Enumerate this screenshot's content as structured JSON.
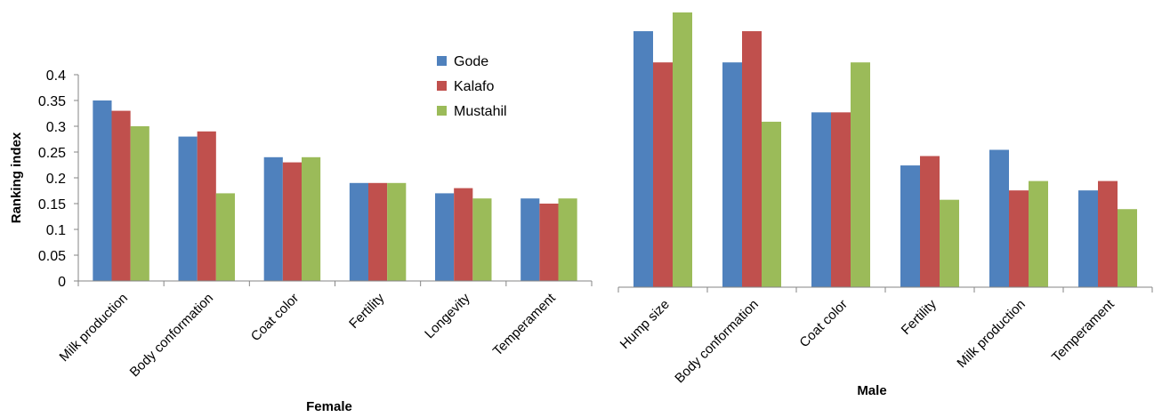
{
  "colors": {
    "Gode": "#4F81BD",
    "Kalafo": "#C0504D",
    "Mustahil": "#9BBB59"
  },
  "legend": {
    "items": [
      "Gode",
      "Kalafo",
      "Mustahil"
    ],
    "placement": "top-right of left chart"
  },
  "chart_data": [
    {
      "type": "bar",
      "xlabel": "Female",
      "ylabel": "Ranking index",
      "ylim": [
        0,
        0.4
      ],
      "yticks": [
        "0",
        "0.05",
        "0.1",
        "0.15",
        "0.2",
        "0.25",
        "0.3",
        "0.35",
        "0.4"
      ],
      "grid": false,
      "categories": [
        "Milk production",
        "Body conformation",
        "Coat color",
        "Fertility",
        "Longevity",
        "Temperament"
      ],
      "series": [
        {
          "name": "Gode",
          "values": [
            0.35,
            0.28,
            0.24,
            0.19,
            0.17,
            0.16
          ]
        },
        {
          "name": "Kalafo",
          "values": [
            0.33,
            0.29,
            0.23,
            0.19,
            0.18,
            0.15
          ]
        },
        {
          "name": "Mustahil",
          "values": [
            0.3,
            0.17,
            0.24,
            0.19,
            0.16,
            0.16
          ]
        }
      ]
    },
    {
      "type": "bar",
      "xlabel": "Male",
      "ylabel": "",
      "ylim": [
        0,
        0.44
      ],
      "yticks": [],
      "grid": false,
      "categories": [
        "Hump size",
        "Body conformation",
        "Coat color",
        "Fertility",
        "Milk production",
        "Temperament"
      ],
      "series": [
        {
          "name": "Gode",
          "values": [
            0.41,
            0.36,
            0.28,
            0.195,
            0.22,
            0.155
          ]
        },
        {
          "name": "Kalafo",
          "values": [
            0.36,
            0.41,
            0.28,
            0.21,
            0.155,
            0.17
          ]
        },
        {
          "name": "Mustahil",
          "values": [
            0.44,
            0.265,
            0.36,
            0.14,
            0.17,
            0.125
          ]
        }
      ]
    }
  ]
}
